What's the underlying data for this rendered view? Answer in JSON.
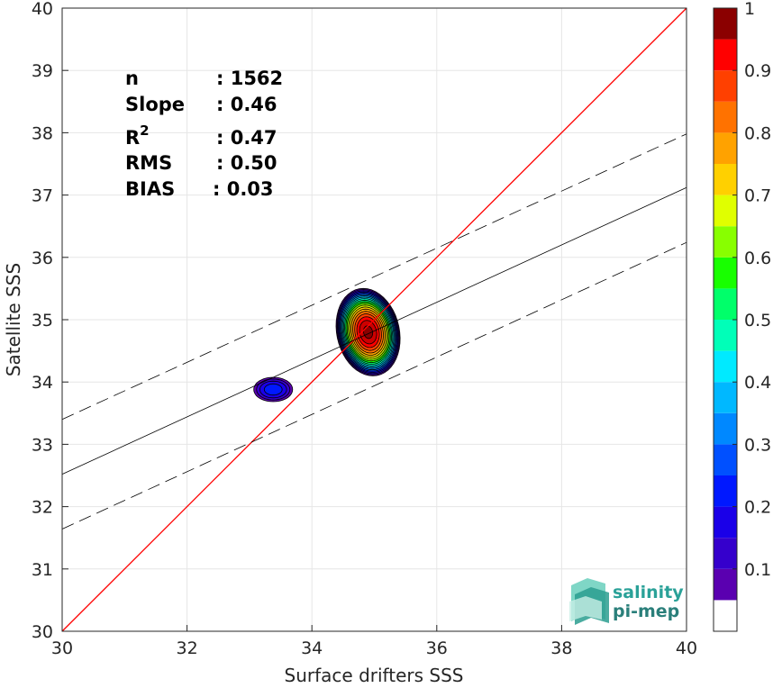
{
  "chart_data": {
    "type": "contour",
    "xlabel": "Surface drifters SSS",
    "ylabel": "Satellite SSS",
    "xlim": [
      30,
      40
    ],
    "ylim": [
      30,
      40
    ],
    "xticks": [
      30,
      32,
      34,
      36,
      38,
      40
    ],
    "yticks": [
      30,
      31,
      32,
      33,
      34,
      35,
      36,
      37,
      38,
      39,
      40
    ],
    "grid": true,
    "stats": [
      {
        "key": "n",
        "value": ": 1562"
      },
      {
        "key": "Slope",
        "value": ": 0.46"
      },
      {
        "key": "R",
        "sup": "2",
        "value": ": 0.47"
      },
      {
        "key": "RMS",
        "value": ": 0.50"
      },
      {
        "key": "BIAS",
        "value": ": 0.03"
      }
    ],
    "identity_line": {
      "color": "#ff0000",
      "x": [
        30,
        40
      ],
      "y": [
        30,
        40
      ]
    },
    "fit_line": {
      "x": [
        30,
        40
      ],
      "y": [
        32.52,
        37.12
      ]
    },
    "upper_dashed": {
      "x": [
        30,
        40
      ],
      "y": [
        33.4,
        37.98
      ]
    },
    "lower_dashed": {
      "x": [
        30,
        40
      ],
      "y": [
        31.64,
        36.24
      ]
    },
    "density_blobs": [
      {
        "name": "main",
        "cx": 34.9,
        "cy": 34.8,
        "rx": 0.52,
        "ry": 0.72,
        "peak": 1.0,
        "tilt": -0.22
      },
      {
        "name": "secondary",
        "cx": 33.38,
        "cy": 33.88,
        "rx": 0.35,
        "ry": 0.22,
        "peak": 0.22,
        "tilt": 0.0
      }
    ],
    "colorbar": {
      "ticks": [
        0.1,
        0.2,
        0.3,
        0.4,
        0.5,
        0.6,
        0.7,
        0.8,
        0.9,
        1
      ],
      "tick_labels": [
        "0.1",
        "0.2",
        "0.3",
        "0.4",
        "0.5",
        "0.6",
        "0.7",
        "0.8",
        "0.9",
        "1"
      ],
      "levels": [
        0,
        0.05,
        0.1,
        0.15,
        0.2,
        0.25,
        0.3,
        0.35,
        0.4,
        0.45,
        0.5,
        0.55,
        0.6,
        0.65,
        0.7,
        0.75,
        0.8,
        0.85,
        0.9,
        0.95,
        1.0
      ],
      "colors": [
        "#ffffff",
        "#5a00b0",
        "#3500cc",
        "#1a00e8",
        "#0018ff",
        "#0050ff",
        "#0088ff",
        "#00b8ff",
        "#00eaff",
        "#00ffb8",
        "#00ff6a",
        "#18ff00",
        "#88ff00",
        "#e0ff00",
        "#ffd000",
        "#ffa200",
        "#ff7200",
        "#ff4000",
        "#ff0000",
        "#cc0000",
        "#8b0000"
      ]
    }
  },
  "logo": {
    "line1": "salinity",
    "line2": "pi-mep"
  }
}
